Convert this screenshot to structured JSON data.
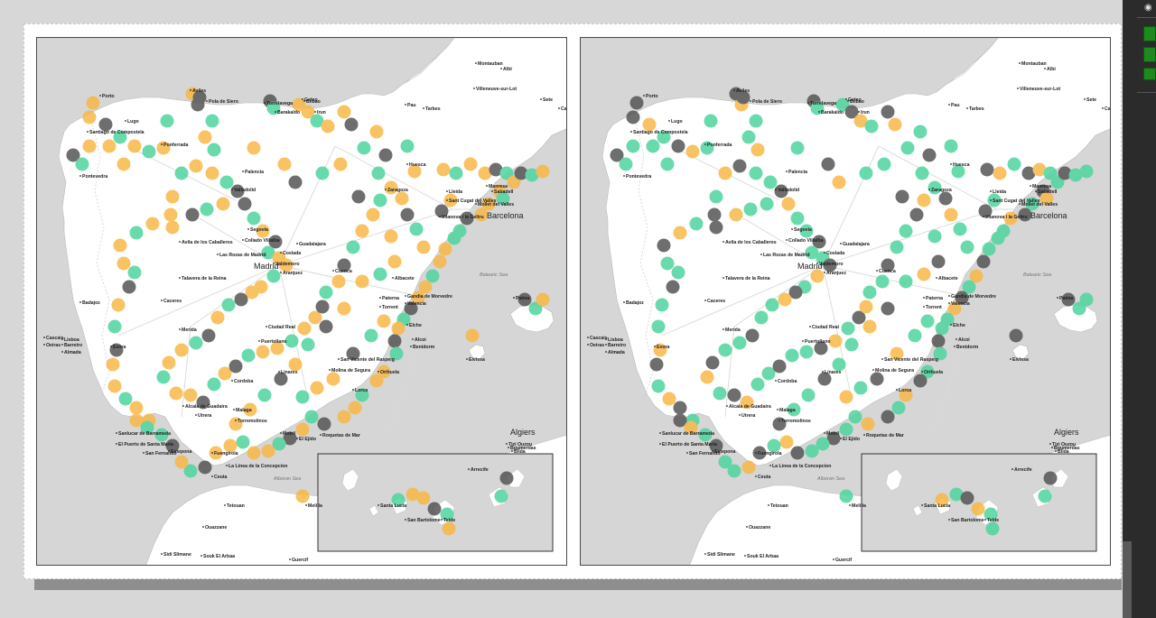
{
  "colors": {
    "orange": "#f8b848",
    "green": "#4fd49e",
    "gray": "#555555",
    "land": "#ffffff",
    "sea": "#d6d6d6",
    "panel_green": "#1d8a1d"
  },
  "side_panel": {
    "eye_icon": "eye-icon",
    "swatches": 3
  },
  "labels": {
    "madrid": "Madrid",
    "barcelona": "Barcelona",
    "algiers": "Algiers",
    "alboran_sea": "Alboran Sea",
    "balearic_sea": "Balearic Sea",
    "porto": "Porto",
    "lugo": "Lugo",
    "santiago": "Santiago de Compostela",
    "ponferrada": "Ponferrada",
    "pontevedra": "Pontevedra",
    "aviles": "Aviles",
    "gijon": "Pola de Siero",
    "torrelavega": "Torrelavega",
    "bilbao": "Bilbao",
    "getxo": "Getxo",
    "barakaldo": "Barakaldo",
    "irun": "Irun",
    "pau": "Pau",
    "tarbes": "Tarbes",
    "palencia": "Palencia",
    "valladolid": "Valladolid",
    "huesca": "Huesca",
    "zaragoza": "Zaragoza",
    "lleida": "Lleida",
    "manresa": "Manresa",
    "sabadell": "Sabadell",
    "mollet": "Mollet del Valles",
    "santcugat": "Sant Cugat del Valles",
    "vilanova": "Vilanova i la Geltru",
    "segovia": "Segovia",
    "avila": "Avila de los Caballeros",
    "collado": "Collado Villalba",
    "guadalajara": "Guadalajara",
    "rozas": "Las Rozas de Madrid",
    "coslada": "Coslada",
    "valdemoro": "Valdemoro",
    "aranjuez": "Aranjuez",
    "cuenca": "Cuenca",
    "talavera": "Talavera de la Reina",
    "caceres": "Caceres",
    "merida": "Merida",
    "badajoz": "Badajoz",
    "ciudadreal": "Ciudad Real",
    "puertollano": "Puertollano",
    "albacete": "Albacete",
    "valencia": "Valencia",
    "paterna": "Paterna",
    "torrente": "Torrent",
    "gandia": "Gandia de Morvedre",
    "elche": "Elche",
    "alcoy": "Alcoi",
    "benidorm": "Benidorm",
    "sanvicente": "San Vicente del Raspeig",
    "molina": "Molina de Segura",
    "orihuela": "Orihuela",
    "lorca": "Lorca",
    "linares": "Linares",
    "ubeda": "Ubeda",
    "cordoba": "Cordoba",
    "alcala": "Alcala de Guadaira",
    "utrera": "Utrera",
    "sevilla": "Sanlucar de Barrameda",
    "puerto": "El Puerto de Santa Maria",
    "sanfernando": "San Fernando",
    "malaga": "Malaga",
    "torremolinos": "Torremolinos",
    "estepona": "Estepona",
    "fuengirola": "Fuengirola",
    "lalinea": "La Linea de la Concepcion",
    "ceuta": "Ceuta",
    "tetouan": "Tetouan",
    "melilla": "Melilla",
    "roquetas": "Roquetas de Mar",
    "elejido": "El Ejido",
    "motril": "Motril",
    "coria": "Coria",
    "lisboa": "Lisboa",
    "barreiro": "Barreiro",
    "evora": "Evora",
    "almada": "Almada",
    "cascais": "Cascais",
    "oeiras": "Oeiras",
    "ibiza": "Eivissa",
    "palma": "Palma",
    "santaluca": "Santa Lucia",
    "arrecife": "Arrecife",
    "sanbartolome": "San Bartolome",
    "telde": "Telde",
    "tizi": "Tizi Ouzou",
    "blida": "Blida",
    "oran": "Boumerdas",
    "sidi": "Sidi Slimane",
    "souk": "Souk El Arbaa",
    "quazzane": "Ouazzane",
    "zarzis": "Guercif",
    "alibi": "Albi",
    "rodez": "Montauban",
    "villeneuve": "Villeneuve-sur-Lot",
    "caderne": "Cadenet",
    "sete": "Sete"
  }
}
